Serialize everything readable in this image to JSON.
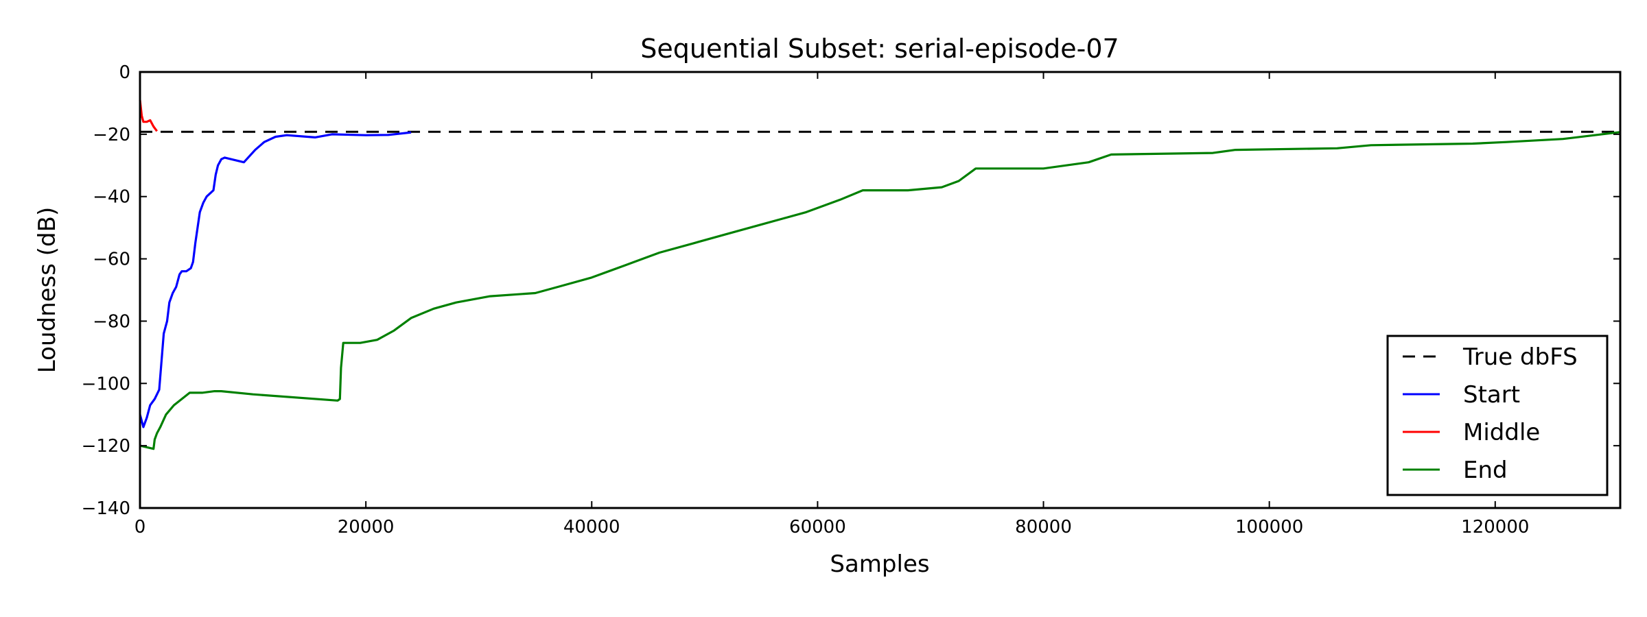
{
  "chart_data": {
    "type": "line",
    "title": "Sequential Subset: serial-episode-07",
    "xlabel": "Samples",
    "ylabel": "Loudness (dB)",
    "xlim": [
      0,
      131072
    ],
    "ylim": [
      -140,
      0
    ],
    "xticks": [
      0,
      20000,
      40000,
      60000,
      80000,
      100000,
      120000
    ],
    "yticks": [
      0,
      -20,
      -40,
      -60,
      -80,
      -100,
      -120,
      -140
    ],
    "grid": false,
    "legend_position": "lower-right",
    "reference_line": {
      "name": "True dbFS",
      "y": -19.2,
      "color": "#000000",
      "style": "dashed"
    },
    "series": [
      {
        "name": "Start",
        "color": "#0000ff",
        "points": [
          [
            0,
            -110
          ],
          [
            300,
            -114
          ],
          [
            600,
            -111
          ],
          [
            900,
            -107
          ],
          [
            1300,
            -105
          ],
          [
            1700,
            -102
          ],
          [
            1900,
            -93
          ],
          [
            2100,
            -84
          ],
          [
            2400,
            -80
          ],
          [
            2600,
            -74
          ],
          [
            2900,
            -71
          ],
          [
            3200,
            -69
          ],
          [
            3500,
            -65
          ],
          [
            3700,
            -64
          ],
          [
            4100,
            -64
          ],
          [
            4500,
            -63
          ],
          [
            4700,
            -61
          ],
          [
            4900,
            -55
          ],
          [
            5100,
            -50
          ],
          [
            5300,
            -45
          ],
          [
            5600,
            -42
          ],
          [
            5900,
            -40
          ],
          [
            6200,
            -39
          ],
          [
            6500,
            -38
          ],
          [
            6700,
            -33
          ],
          [
            6900,
            -30
          ],
          [
            7200,
            -28
          ],
          [
            7500,
            -27.5
          ],
          [
            9200,
            -29
          ],
          [
            10200,
            -25
          ],
          [
            11000,
            -22.5
          ],
          [
            12000,
            -20.8
          ],
          [
            13000,
            -20.3
          ],
          [
            15500,
            -21
          ],
          [
            17000,
            -20
          ],
          [
            20000,
            -20.3
          ],
          [
            22000,
            -20.2
          ],
          [
            24000,
            -19.4
          ]
        ]
      },
      {
        "name": "Middle",
        "color": "#ff0000",
        "points": [
          [
            0,
            -9
          ],
          [
            150,
            -14
          ],
          [
            300,
            -16
          ],
          [
            600,
            -16
          ],
          [
            900,
            -15.5
          ],
          [
            1200,
            -17.5
          ],
          [
            1500,
            -19
          ]
        ]
      },
      {
        "name": "End",
        "color": "#008000",
        "points": [
          [
            0,
            -120
          ],
          [
            1200,
            -121
          ],
          [
            1300,
            -118
          ],
          [
            1500,
            -116
          ],
          [
            1800,
            -114
          ],
          [
            2300,
            -110
          ],
          [
            3000,
            -107
          ],
          [
            3700,
            -105
          ],
          [
            4400,
            -103
          ],
          [
            5500,
            -103
          ],
          [
            6600,
            -102.5
          ],
          [
            7200,
            -102.5
          ],
          [
            10000,
            -103.5
          ],
          [
            17500,
            -105.5
          ],
          [
            17700,
            -105
          ],
          [
            17800,
            -95
          ],
          [
            18000,
            -87
          ],
          [
            19500,
            -87
          ],
          [
            21000,
            -86
          ],
          [
            22500,
            -83
          ],
          [
            24000,
            -79
          ],
          [
            26000,
            -76
          ],
          [
            28000,
            -74
          ],
          [
            31000,
            -72
          ],
          [
            35000,
            -71
          ],
          [
            37000,
            -69
          ],
          [
            40000,
            -66
          ],
          [
            43000,
            -62
          ],
          [
            46000,
            -58
          ],
          [
            49000,
            -55
          ],
          [
            52000,
            -52
          ],
          [
            55000,
            -49
          ],
          [
            57000,
            -47
          ],
          [
            59000,
            -45
          ],
          [
            62000,
            -41
          ],
          [
            64000,
            -38
          ],
          [
            68000,
            -38
          ],
          [
            71000,
            -37
          ],
          [
            72500,
            -35
          ],
          [
            74000,
            -31
          ],
          [
            80000,
            -31
          ],
          [
            84000,
            -29
          ],
          [
            86000,
            -26.5
          ],
          [
            95000,
            -26
          ],
          [
            97000,
            -25
          ],
          [
            106000,
            -24.5
          ],
          [
            109000,
            -23.5
          ],
          [
            118000,
            -23
          ],
          [
            121000,
            -22.5
          ],
          [
            126000,
            -21.5
          ],
          [
            131072,
            -19.3
          ]
        ]
      }
    ]
  }
}
